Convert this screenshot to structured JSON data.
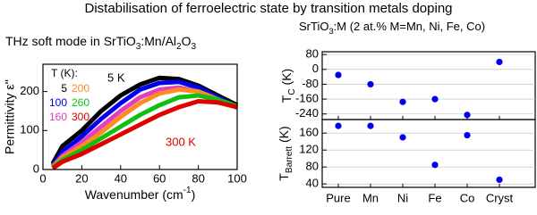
{
  "title": "Distabilisation of ferroelectric state by transition metals doping",
  "chart_data": [
    {
      "type": "line",
      "title": [
        "THz soft mode in SrTiO",
        "3",
        ":Mn/Al",
        "2",
        "O",
        "3",
        ""
      ],
      "xlabel": [
        "Wavenumber  (cm",
        "-1",
        ")"
      ],
      "ylabel": "Permittivity ε''",
      "xlim": [
        0,
        100
      ],
      "xticks": [
        0,
        20,
        40,
        60,
        80,
        100
      ],
      "ylim": [
        0,
        270
      ],
      "yticks": [
        0,
        100,
        200
      ],
      "legend_title": "T (K):",
      "annotations": [
        {
          "text": "5 K",
          "color": "#000000"
        },
        {
          "text": "300 K",
          "color": "#e00000"
        }
      ],
      "x": [
        5,
        10,
        20,
        30,
        40,
        50,
        60,
        70,
        80,
        90,
        100
      ],
      "series": [
        {
          "name": "5",
          "color": "#000000",
          "values": [
            15,
            60,
            100,
            150,
            190,
            218,
            235,
            232,
            215,
            190,
            165
          ]
        },
        {
          "name": "100",
          "color": "#0000ee",
          "values": [
            10,
            45,
            85,
            130,
            170,
            205,
            222,
            225,
            210,
            185,
            160
          ]
        },
        {
          "name": "160",
          "color": "#e040c0",
          "values": [
            8,
            35,
            70,
            110,
            150,
            185,
            205,
            210,
            200,
            180,
            158
          ]
        },
        {
          "name": "200",
          "color": "#ff8c20",
          "values": [
            6,
            30,
            60,
            95,
            135,
            170,
            195,
            205,
            200,
            180,
            158
          ]
        },
        {
          "name": "260",
          "color": "#10c010",
          "values": [
            5,
            25,
            50,
            80,
            110,
            140,
            165,
            185,
            190,
            180,
            162
          ]
        },
        {
          "name": "300",
          "color": "#e00000",
          "values": [
            3,
            20,
            40,
            65,
            90,
            115,
            140,
            160,
            175,
            172,
            160
          ]
        }
      ]
    },
    {
      "type": "scatter",
      "title": [
        "SrTiO",
        "3",
        ":M (2 at.% M=Mn, Ni, Fe, Co)"
      ],
      "ylabel": [
        "T",
        "C",
        " (K)"
      ],
      "ylim": [
        -270,
        95
      ],
      "yticks": [
        80,
        0,
        -80,
        -160,
        -240
      ],
      "color": "#0000ee",
      "values": [
        -30,
        -80,
        -175,
        -160,
        -245,
        40
      ]
    },
    {
      "type": "scatter",
      "ylabel": [
        "T",
        "Barrett",
        " (K)"
      ],
      "categories": [
        "Pure",
        "Mn",
        "Ni",
        "Fe",
        "Co",
        "Cryst"
      ],
      "ylim": [
        32,
        192
      ],
      "yticks": [
        40,
        80,
        120,
        160
      ],
      "color": "#0000ee",
      "values": [
        177,
        177,
        150,
        85,
        155,
        50
      ]
    }
  ]
}
